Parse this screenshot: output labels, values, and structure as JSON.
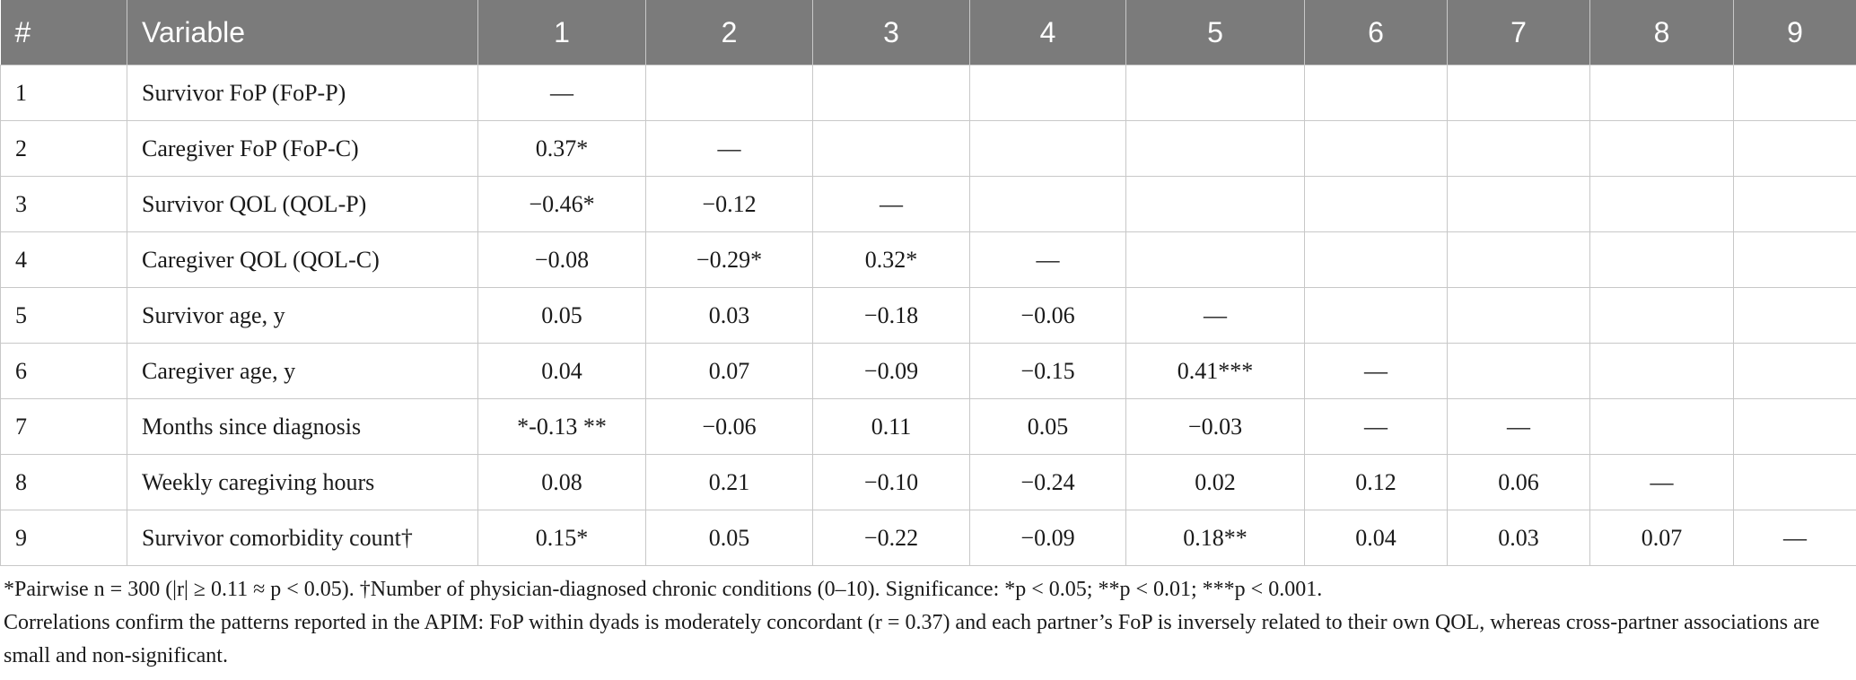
{
  "table": {
    "header": [
      "#",
      "Variable",
      "1",
      "2",
      "3",
      "4",
      "5",
      "6",
      "7",
      "8",
      "9"
    ],
    "rows": [
      [
        "1",
        "Survivor FoP (FoP-P)",
        "—",
        null,
        null,
        null,
        null,
        null,
        null,
        null,
        null
      ],
      [
        "2",
        "Caregiver FoP (FoP-C)",
        "0.37*",
        "—",
        null,
        null,
        null,
        null,
        null,
        null,
        null
      ],
      [
        "3",
        "Survivor QOL (QOL-P)",
        "−0.46*",
        "−0.12",
        "—",
        null,
        null,
        null,
        null,
        null,
        null
      ],
      [
        "4",
        "Caregiver QOL (QOL-C)",
        "−0.08",
        "−0.29*",
        "0.32*",
        "—",
        null,
        null,
        null,
        null,
        null
      ],
      [
        "5",
        "Survivor age, y",
        "0.05",
        "0.03",
        "−0.18",
        "−0.06",
        "—",
        null,
        null,
        null,
        null
      ],
      [
        "6",
        "Caregiver age, y",
        "0.04",
        "0.07",
        "−0.09",
        "−0.15",
        "0.41***",
        "—",
        null,
        null,
        null
      ],
      [
        "7",
        "Months since diagnosis",
        "*-0.13 **",
        "−0.06",
        "0.11",
        "0.05",
        "−0.03",
        "—",
        "—",
        null,
        null
      ],
      [
        "8",
        "Weekly caregiving hours",
        "0.08",
        "0.21",
        "−0.10",
        "−0.24",
        "0.02",
        "0.12",
        "0.06",
        "—",
        null
      ],
      [
        "9",
        "Survivor comorbidity count†",
        "0.15*",
        "0.05",
        "−0.22",
        "−0.09",
        "0.18**",
        "0.04",
        "0.03",
        "0.07",
        "—"
      ]
    ]
  },
  "footnotes": [
    "*Pairwise n = 300 (|r| ≥ 0.11 ≈ p < 0.05). †Number of physician-diagnosed chronic conditions (0–10). Significance: *p < 0.05; **p < 0.01; ***p < 0.001.",
    "Correlations confirm the patterns reported in the APIM: FoP within dyads is moderately concordant (r = 0.37) and each partner’s FoP is inversely related to their own QOL, whereas cross-partner associations are small and non-significant."
  ]
}
